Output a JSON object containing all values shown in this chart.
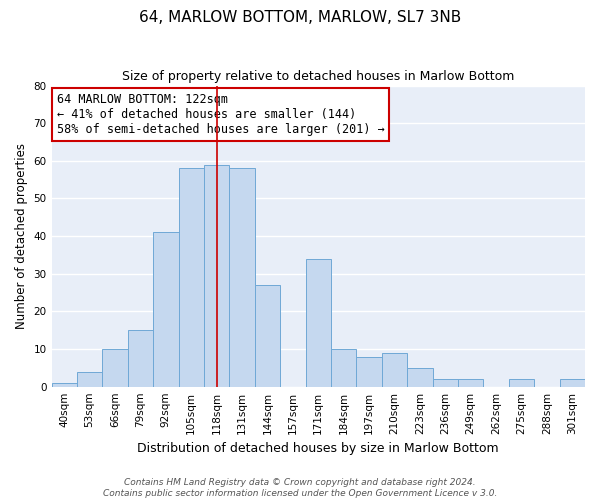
{
  "title": "64, MARLOW BOTTOM, MARLOW, SL7 3NB",
  "subtitle": "Size of property relative to detached houses in Marlow Bottom",
  "xlabel": "Distribution of detached houses by size in Marlow Bottom",
  "ylabel": "Number of detached properties",
  "bar_labels": [
    "40sqm",
    "53sqm",
    "66sqm",
    "79sqm",
    "92sqm",
    "105sqm",
    "118sqm",
    "131sqm",
    "144sqm",
    "157sqm",
    "171sqm",
    "184sqm",
    "197sqm",
    "210sqm",
    "223sqm",
    "236sqm",
    "249sqm",
    "262sqm",
    "275sqm",
    "288sqm",
    "301sqm"
  ],
  "bar_values": [
    1,
    4,
    10,
    15,
    41,
    58,
    59,
    58,
    27,
    0,
    34,
    10,
    8,
    9,
    5,
    2,
    2,
    0,
    2,
    0,
    2
  ],
  "bar_color": "#c5d8ef",
  "bar_edge_color": "#6fa8d6",
  "highlight_bar_index": 6,
  "highlight_line_color": "#cc0000",
  "ylim": [
    0,
    80
  ],
  "yticks": [
    0,
    10,
    20,
    30,
    40,
    50,
    60,
    70,
    80
  ],
  "annotation_title": "64 MARLOW BOTTOM: 122sqm",
  "annotation_line1": "← 41% of detached houses are smaller (144)",
  "annotation_line2": "58% of semi-detached houses are larger (201) →",
  "annotation_box_color": "#ffffff",
  "annotation_box_edge": "#cc0000",
  "footer1": "Contains HM Land Registry data © Crown copyright and database right 2024.",
  "footer2": "Contains public sector information licensed under the Open Government Licence v 3.0.",
  "plot_bg_color": "#e8eef8",
  "fig_bg_color": "#ffffff",
  "grid_color": "#ffffff",
  "title_fontsize": 11,
  "subtitle_fontsize": 9,
  "xlabel_fontsize": 9,
  "ylabel_fontsize": 8.5,
  "tick_fontsize": 7.5,
  "annotation_fontsize": 8.5,
  "footer_fontsize": 6.5
}
